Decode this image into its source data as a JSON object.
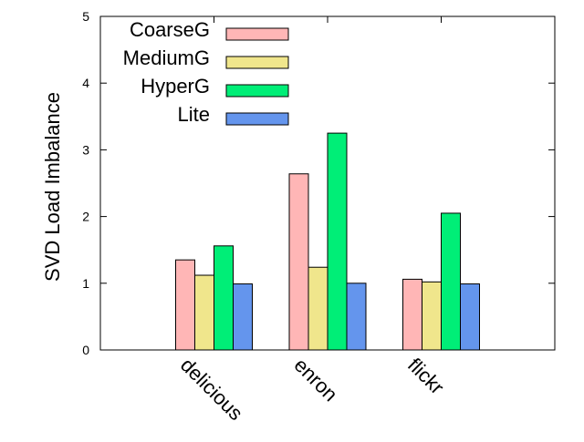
{
  "chart_data": {
    "type": "bar",
    "title": "",
    "xlabel": "",
    "ylabel": "SVD Load Imbalance",
    "ylim": [
      0,
      5
    ],
    "yticks": [
      0,
      1,
      2,
      3,
      4,
      5
    ],
    "grid": false,
    "legend_position": "top-left",
    "categories": [
      "delicious",
      "enron",
      "flickr"
    ],
    "series": [
      {
        "name": "CoarseG",
        "color": "#ffb6b6",
        "values": [
          1.35,
          2.64,
          1.06
        ]
      },
      {
        "name": "MediumG",
        "color": "#f0e68c",
        "values": [
          1.12,
          1.24,
          1.02
        ]
      },
      {
        "name": "HyperG",
        "color": "#00ee77",
        "values": [
          1.56,
          3.25,
          2.05
        ]
      },
      {
        "name": "Lite",
        "color": "#6495ed",
        "values": [
          0.99,
          1.0,
          0.99
        ]
      }
    ]
  }
}
